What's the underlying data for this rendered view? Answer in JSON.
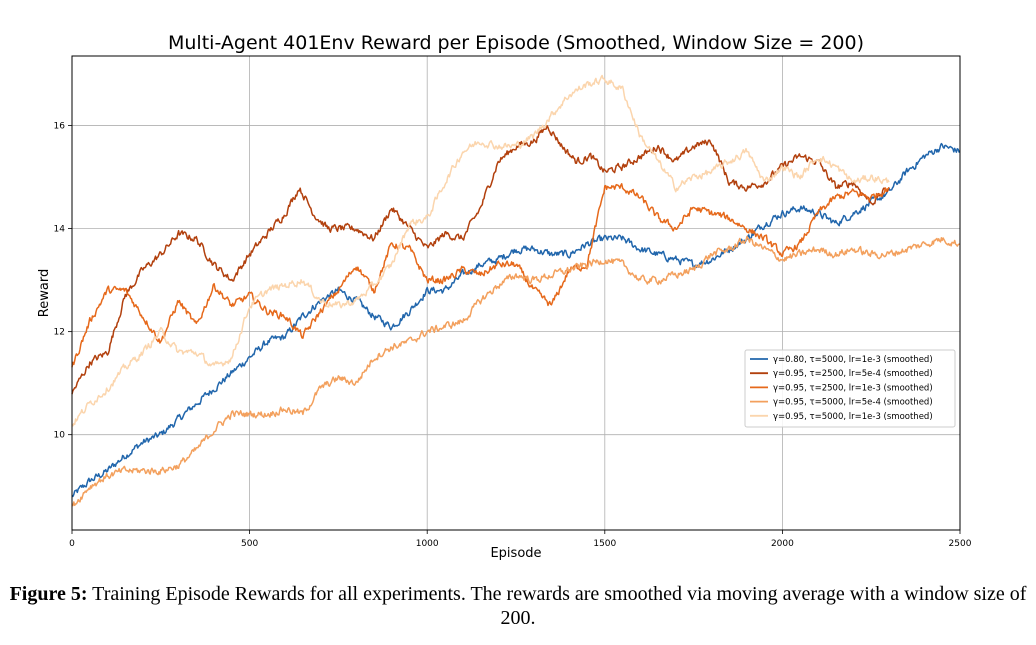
{
  "chart_data": {
    "type": "line",
    "title": "Multi-Agent 401Env Reward per Episode (Smoothed, Window Size = 200)",
    "xlabel": "Episode",
    "ylabel": "Reward",
    "xlim": [
      0,
      2500
    ],
    "ylim": [
      8.15,
      17.35
    ],
    "xticks": [
      0,
      500,
      1000,
      1500,
      2000,
      2500
    ],
    "yticks": [
      10,
      12,
      14,
      16
    ],
    "grid": true,
    "legend_position": "center-right",
    "series": [
      {
        "name": "γ=0.80, τ=5000, lr=1e-3 (smoothed)",
        "color": "#2166ac",
        "x": [
          0,
          50,
          100,
          150,
          200,
          250,
          300,
          350,
          400,
          450,
          500,
          550,
          600,
          650,
          700,
          750,
          800,
          850,
          900,
          950,
          1000,
          1050,
          1100,
          1150,
          1200,
          1250,
          1300,
          1350,
          1400,
          1450,
          1500,
          1550,
          1600,
          1650,
          1700,
          1750,
          1800,
          1850,
          1900,
          1950,
          2000,
          2050,
          2100,
          2150,
          2200,
          2250,
          2300,
          2350,
          2400,
          2450,
          2500
        ],
        "y": [
          8.8,
          9.1,
          9.3,
          9.6,
          9.85,
          10.0,
          10.3,
          10.6,
          10.9,
          11.2,
          11.5,
          11.8,
          11.9,
          12.3,
          12.6,
          12.8,
          12.6,
          12.3,
          12.1,
          12.4,
          12.8,
          12.8,
          13.1,
          13.3,
          13.4,
          13.6,
          13.6,
          13.5,
          13.5,
          13.7,
          13.8,
          13.8,
          13.6,
          13.5,
          13.4,
          13.3,
          13.4,
          13.6,
          13.8,
          14.1,
          14.3,
          14.4,
          14.3,
          14.1,
          14.3,
          14.5,
          14.7,
          15.1,
          15.4,
          15.6,
          15.5
        ]
      },
      {
        "name": "γ=0.95, τ=2500, lr=5e-4 (smoothed)",
        "color": "#b2400d",
        "x": [
          0,
          50,
          100,
          150,
          200,
          250,
          300,
          350,
          400,
          450,
          500,
          550,
          600,
          640,
          680,
          720,
          760,
          800,
          850,
          900,
          950,
          1000,
          1050,
          1100,
          1150,
          1200,
          1250,
          1300,
          1340,
          1380,
          1420,
          1460,
          1500,
          1550,
          1600,
          1650,
          1700,
          1750,
          1800,
          1850,
          1900,
          1950,
          2000,
          2050,
          2100,
          2150,
          2200,
          2250,
          2300
        ],
        "y": [
          10.8,
          11.4,
          11.6,
          12.7,
          13.2,
          13.5,
          13.9,
          13.8,
          13.3,
          13.0,
          13.5,
          13.9,
          14.3,
          14.8,
          14.3,
          14.0,
          14.0,
          14.0,
          13.8,
          14.4,
          14.0,
          13.6,
          13.9,
          13.8,
          14.4,
          15.3,
          15.6,
          15.7,
          16.0,
          15.6,
          15.3,
          15.4,
          15.1,
          15.2,
          15.4,
          15.6,
          15.3,
          15.6,
          15.7,
          14.9,
          14.8,
          14.9,
          15.2,
          15.4,
          15.3,
          14.8,
          14.9,
          14.5,
          14.8
        ]
      },
      {
        "name": "γ=0.95, τ=2500, lr=1e-3 (smoothed)",
        "color": "#e6691b",
        "x": [
          0,
          50,
          100,
          150,
          200,
          250,
          300,
          350,
          400,
          450,
          500,
          550,
          600,
          650,
          700,
          750,
          800,
          850,
          900,
          950,
          1000,
          1050,
          1100,
          1150,
          1200,
          1250,
          1300,
          1350,
          1400,
          1450,
          1500,
          1550,
          1600,
          1650,
          1700,
          1750,
          1800,
          1850,
          1900,
          1950,
          2000,
          2050,
          2100,
          2150,
          2200,
          2250,
          2300
        ],
        "y": [
          11.3,
          12.2,
          12.8,
          12.8,
          12.3,
          11.8,
          12.6,
          12.1,
          12.9,
          12.5,
          12.7,
          12.4,
          12.3,
          11.9,
          12.4,
          12.8,
          13.3,
          12.8,
          13.7,
          13.6,
          13.0,
          13.0,
          13.2,
          13.1,
          13.3,
          13.3,
          12.8,
          12.5,
          13.2,
          13.3,
          14.8,
          14.8,
          14.6,
          14.2,
          14.0,
          14.4,
          14.3,
          14.2,
          14.0,
          13.8,
          13.5,
          13.7,
          14.3,
          14.6,
          14.7,
          14.6,
          14.8
        ]
      },
      {
        "name": "γ=0.95, τ=5000, lr=5e-4 (smoothed)",
        "color": "#f3a05d",
        "x": [
          0,
          50,
          100,
          150,
          200,
          250,
          300,
          350,
          400,
          450,
          500,
          550,
          600,
          650,
          700,
          750,
          800,
          850,
          900,
          950,
          1000,
          1050,
          1100,
          1150,
          1200,
          1250,
          1300,
          1350,
          1400,
          1450,
          1500,
          1550,
          1600,
          1650,
          1700,
          1750,
          1800,
          1850,
          1900,
          1950,
          2000,
          2050,
          2100,
          2150,
          2200,
          2250,
          2300,
          2350,
          2400,
          2450,
          2500
        ],
        "y": [
          8.6,
          9.0,
          9.2,
          9.3,
          9.3,
          9.3,
          9.4,
          9.7,
          10.1,
          10.4,
          10.4,
          10.4,
          10.5,
          10.4,
          10.9,
          11.1,
          11.0,
          11.5,
          11.7,
          11.8,
          12.0,
          12.1,
          12.2,
          12.6,
          12.9,
          13.1,
          13.0,
          13.1,
          13.2,
          13.3,
          13.4,
          13.3,
          13.0,
          13.0,
          13.1,
          13.2,
          13.5,
          13.6,
          13.8,
          13.6,
          13.4,
          13.5,
          13.6,
          13.5,
          13.6,
          13.5,
          13.5,
          13.6,
          13.7,
          13.8,
          13.7
        ]
      },
      {
        "name": "γ=0.95, τ=5000, lr=1e-3 (smoothed)",
        "color": "#fbd5ad",
        "x": [
          0,
          50,
          100,
          150,
          200,
          250,
          300,
          350,
          400,
          450,
          500,
          550,
          600,
          650,
          700,
          750,
          800,
          850,
          900,
          950,
          1000,
          1050,
          1100,
          1150,
          1200,
          1250,
          1300,
          1350,
          1400,
          1450,
          1500,
          1550,
          1600,
          1650,
          1700,
          1750,
          1800,
          1850,
          1900,
          1950,
          2000,
          2050,
          2100,
          2150,
          2200,
          2250,
          2300
        ],
        "y": [
          10.2,
          10.6,
          10.9,
          11.3,
          11.6,
          12.0,
          11.6,
          11.6,
          11.3,
          11.5,
          12.5,
          12.8,
          12.9,
          13.0,
          12.6,
          12.5,
          12.6,
          12.9,
          13.3,
          14.1,
          14.2,
          14.9,
          15.5,
          15.7,
          15.6,
          15.6,
          15.8,
          16.2,
          16.6,
          16.8,
          16.9,
          16.7,
          15.8,
          15.3,
          14.8,
          15.0,
          15.1,
          15.3,
          15.5,
          14.9,
          15.2,
          15.0,
          15.4,
          15.2,
          14.9,
          15.0,
          14.9
        ]
      }
    ]
  },
  "caption": {
    "label": "Figure 5:",
    "text": " Training Episode Rewards for all experiments. The rewards are smoothed via moving average with a window size of 200."
  }
}
